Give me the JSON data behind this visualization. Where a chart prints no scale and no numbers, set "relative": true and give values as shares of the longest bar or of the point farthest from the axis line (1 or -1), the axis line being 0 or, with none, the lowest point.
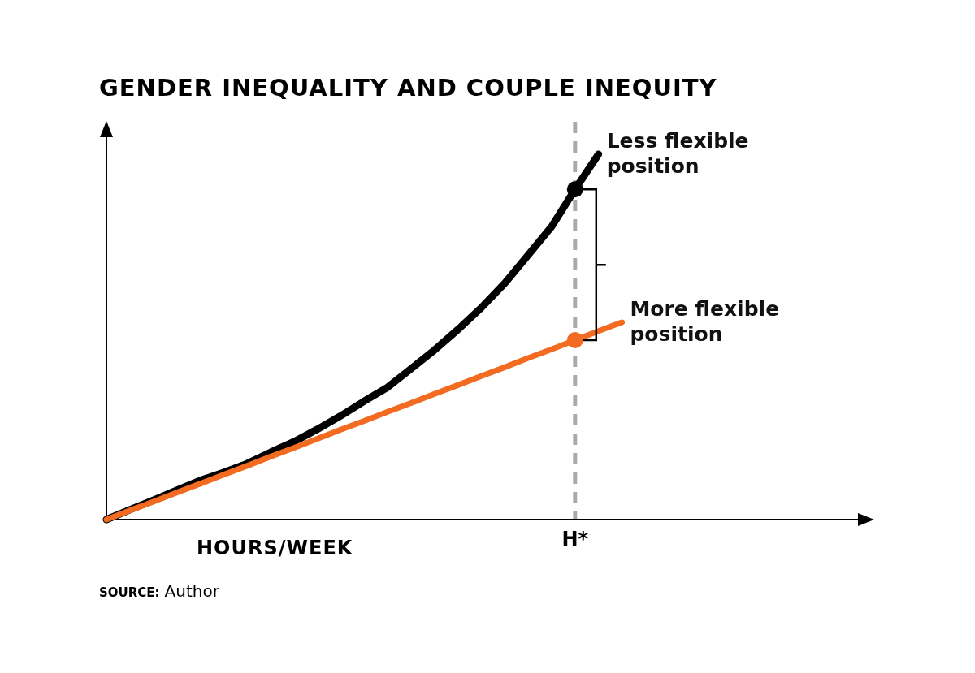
{
  "chart_data": {
    "type": "line",
    "title": "GENDER INEQUALITY AND COUPLE INEQUITY",
    "xlabel": "HOURS/WEEK",
    "relative": true,
    "line_style": "solid",
    "marker": "none",
    "legend": false,
    "categories": [
      null,
      null,
      null,
      null,
      null,
      null,
      null,
      null,
      null,
      null,
      null,
      null,
      null,
      null,
      null,
      null,
      null,
      null,
      null,
      null,
      null,
      null,
      null
    ],
    "series": [
      {
        "name": "Less flexible position",
        "color": "#000000",
        "values": [
          0,
          0.027,
          0.053,
          0.08,
          0.107,
          0.129,
          0.153,
          0.184,
          0.213,
          0.247,
          0.284,
          0.324,
          0.362,
          0.413,
          0.464,
          0.52,
          0.58,
          0.647,
          0.724,
          0.802,
          0.904,
          1,
          null
        ]
      },
      {
        "name": "More flexible position",
        "color": "#f26b21",
        "values": [
          0,
          0.025,
          0.049,
          0.074,
          0.098,
          0.123,
          0.147,
          0.172,
          0.196,
          0.221,
          0.246,
          0.27,
          0.295,
          0.319,
          0.344,
          0.368,
          0.393,
          0.417,
          0.442,
          0.466,
          0.491,
          0.516,
          0.54
        ]
      }
    ],
    "annotations": [
      "H*",
      "SOURCE: Author"
    ]
  }
}
